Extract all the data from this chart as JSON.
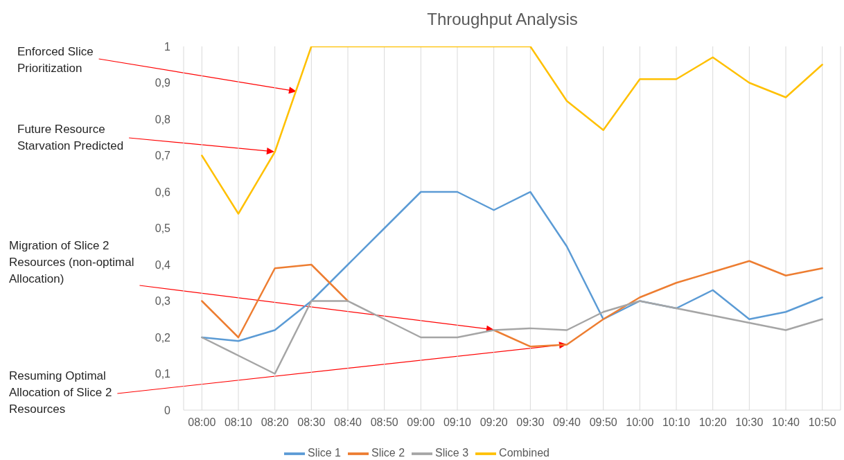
{
  "chart_data": {
    "type": "line",
    "title": "Throughput Analysis",
    "categories": [
      "08:00",
      "08:10",
      "08:20",
      "08:30",
      "08:40",
      "08:50",
      "09:00",
      "09:10",
      "09:20",
      "09:30",
      "09:40",
      "09:50",
      "10:00",
      "10:10",
      "10:20",
      "10:30",
      "10:40",
      "10:50"
    ],
    "series": [
      {
        "name": "Slice 1",
        "color": "#5b9bd5",
        "values": [
          0.2,
          0.19,
          0.22,
          0.3,
          0.4,
          0.5,
          0.6,
          0.6,
          0.55,
          0.6,
          0.45,
          0.25,
          0.3,
          0.28,
          0.33,
          0.25,
          0.27,
          0.31
        ]
      },
      {
        "name": "Slice 2",
        "color": "#ed7d31",
        "values": [
          0.3,
          0.2,
          0.39,
          0.4,
          0.3,
          null,
          null,
          null,
          0.22,
          0.175,
          0.18,
          0.25,
          0.31,
          0.35,
          0.38,
          0.41,
          0.37,
          0.39
        ]
      },
      {
        "name": "Slice 3",
        "color": "#a5a5a5",
        "values": [
          0.2,
          0.15,
          0.1,
          0.3,
          0.3,
          0.25,
          0.2,
          0.2,
          0.22,
          0.225,
          0.22,
          0.27,
          0.3,
          0.28,
          0.26,
          0.24,
          0.22,
          0.25
        ]
      },
      {
        "name": "Combined",
        "color": "#ffc000",
        "values": [
          0.7,
          0.54,
          0.71,
          1,
          1,
          1,
          1,
          1,
          1,
          1,
          0.85,
          0.77,
          0.91,
          0.91,
          0.97,
          0.9,
          0.86,
          0.95
        ]
      }
    ],
    "ylim": [
      0,
      1
    ],
    "yticks": [
      0,
      {
        "value": 0.1,
        "label": "0,1"
      },
      {
        "value": 0.2,
        "label": "0,2"
      },
      {
        "value": 0.3,
        "label": "0,3"
      },
      {
        "value": 0.4,
        "label": "0,4"
      },
      {
        "value": 0.5,
        "label": "0,5"
      },
      {
        "value": 0.6,
        "label": "0,6"
      },
      {
        "value": 0.7,
        "label": "0,7"
      },
      {
        "value": 0.8,
        "label": "0,8"
      },
      {
        "value": 0.9,
        "label": "0,9"
      },
      1
    ],
    "grid": "x",
    "legend": "bottom",
    "marker": "none",
    "line_style": "solid",
    "annotations": [
      "Enforced Slice Prioritization",
      "Future Resource Starvation Predicted",
      "Migration of Slice 2 Resources (non-optimal Allocation)",
      "Resuming Optimal Allocation of Slice 2 Resources"
    ]
  }
}
